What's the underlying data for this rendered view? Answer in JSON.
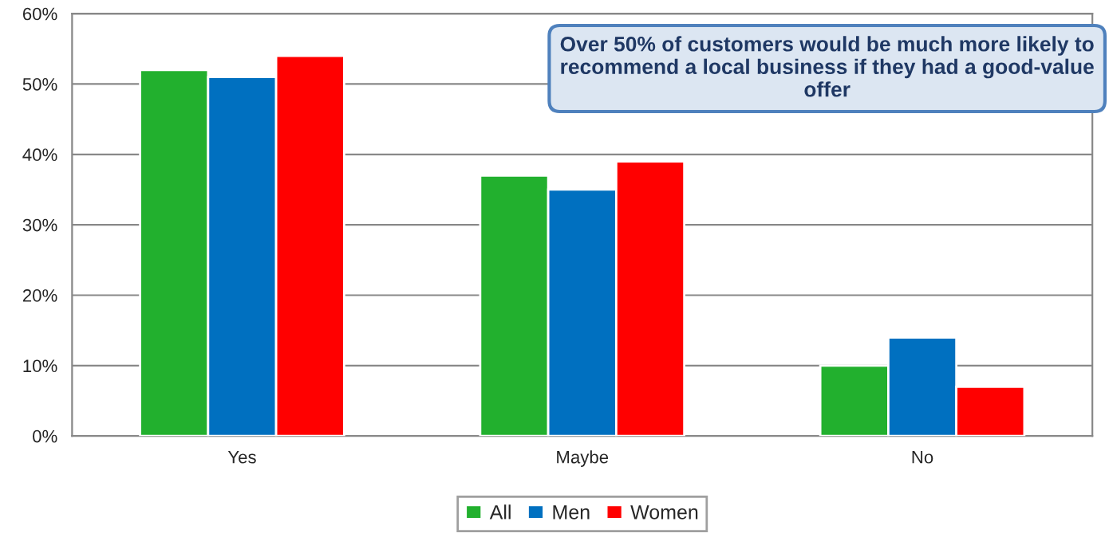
{
  "chart_data": {
    "type": "bar",
    "categories": [
      "Yes",
      "Maybe",
      "No"
    ],
    "series": [
      {
        "name": "All",
        "color": "#22b02e",
        "values": [
          52,
          37,
          10
        ]
      },
      {
        "name": "Men",
        "color": "#0070c0",
        "values": [
          51,
          35,
          14
        ]
      },
      {
        "name": "Women",
        "color": "#ff0000",
        "values": [
          54,
          39,
          7
        ]
      }
    ],
    "ylim": [
      0,
      60
    ],
    "yticks": [
      {
        "value": 0,
        "label": "0%"
      },
      {
        "value": 10,
        "label": "10%"
      },
      {
        "value": 20,
        "label": "20%"
      },
      {
        "value": 30,
        "label": "30%"
      },
      {
        "value": 40,
        "label": "40%"
      },
      {
        "value": 50,
        "label": "50%"
      },
      {
        "value": 60,
        "label": "60%"
      }
    ],
    "grid": "y",
    "legend": "bottom",
    "annotations": [
      "Over 50% of customers would be much more likely to recommend a local business if they had a good-value offer"
    ]
  }
}
